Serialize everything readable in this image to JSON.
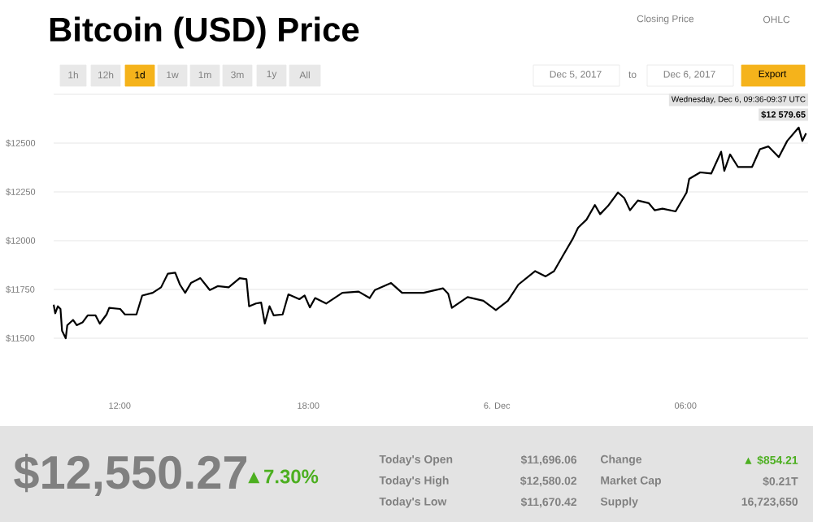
{
  "chart_data": {
    "type": "line",
    "title": "Bitcoin (USD) Price",
    "color": "#000000",
    "grid": "y",
    "x": [
      "2017-12-05T09:54",
      "2017-12-05T09:57",
      "2017-12-05T10:02",
      "2017-12-05T10:07",
      "2017-12-05T10:10",
      "2017-12-05T10:17",
      "2017-12-05T10:20",
      "2017-12-05T10:31",
      "2017-12-05T10:38",
      "2017-12-05T10:49",
      "2017-12-05T10:59",
      "2017-12-05T11:14",
      "2017-12-05T11:22",
      "2017-12-05T11:35",
      "2017-12-05T11:40",
      "2017-12-05T12:01",
      "2017-12-05T12:10",
      "2017-12-05T12:32",
      "2017-12-05T12:43",
      "2017-12-05T13:03",
      "2017-12-05T13:19",
      "2017-12-05T13:32",
      "2017-12-05T13:46",
      "2017-12-05T13:55",
      "2017-12-05T14:05",
      "2017-12-05T14:16",
      "2017-12-05T14:34",
      "2017-12-05T14:52",
      "2017-12-05T15:07",
      "2017-12-05T15:28",
      "2017-12-05T15:49",
      "2017-12-05T16:02",
      "2017-12-05T16:07",
      "2017-12-05T16:20",
      "2017-12-05T16:30",
      "2017-12-05T16:37",
      "2017-12-05T16:46",
      "2017-12-05T16:54",
      "2017-12-05T17:11",
      "2017-12-05T17:22",
      "2017-12-05T17:43",
      "2017-12-05T17:53",
      "2017-12-05T18:03",
      "2017-12-05T18:13",
      "2017-12-05T18:34",
      "2017-12-05T19:05",
      "2017-12-05T19:36",
      "2017-12-05T19:57",
      "2017-12-05T20:07",
      "2017-12-05T20:38",
      "2017-12-05T20:59",
      "2017-12-05T21:40",
      "2017-12-05T22:17",
      "2017-12-05T22:27",
      "2017-12-05T22:34",
      "2017-12-05T23:04",
      "2017-12-05T23:34",
      "2017-12-05T23:58",
      "2017-12-06T00:21",
      "2017-12-06T00:41",
      "2017-12-06T01:13",
      "2017-12-06T01:33",
      "2017-12-06T01:49",
      "2017-12-06T02:07",
      "2017-12-06T02:25",
      "2017-12-06T02:35",
      "2017-12-06T02:51",
      "2017-12-06T03:07",
      "2017-12-06T03:17",
      "2017-12-06T03:32",
      "2017-12-06T03:51",
      "2017-12-06T04:03",
      "2017-12-06T04:14",
      "2017-12-06T04:29",
      "2017-12-06T04:50",
      "2017-12-06T05:01",
      "2017-12-06T05:16",
      "2017-12-06T05:41",
      "2017-12-06T06:02",
      "2017-12-06T06:07",
      "2017-12-06T06:28",
      "2017-12-06T06:49",
      "2017-12-06T07:08",
      "2017-12-06T07:14",
      "2017-12-06T07:25",
      "2017-12-06T07:40",
      "2017-12-06T08:07",
      "2017-12-06T08:22",
      "2017-12-06T08:38",
      "2017-12-06T08:58",
      "2017-12-06T09:14",
      "2017-12-06T09:36",
      "2017-12-06T09:43",
      "2017-12-06T09:50"
    ],
    "values": [
      11672,
      11628,
      11664,
      11650,
      11539,
      11500,
      11567,
      11594,
      11567,
      11581,
      11617,
      11617,
      11575,
      11622,
      11656,
      11650,
      11622,
      11622,
      11719,
      11733,
      11761,
      11831,
      11836,
      11775,
      11733,
      11783,
      11808,
      11747,
      11767,
      11761,
      11808,
      11803,
      11664,
      11678,
      11683,
      11575,
      11664,
      11617,
      11622,
      11725,
      11700,
      11719,
      11658,
      11706,
      11678,
      11733,
      11739,
      11706,
      11747,
      11783,
      11733,
      11733,
      11756,
      11728,
      11656,
      11711,
      11692,
      11644,
      11692,
      11775,
      11844,
      11817,
      11844,
      11928,
      12011,
      12067,
      12108,
      12183,
      12136,
      12178,
      12247,
      12219,
      12156,
      12206,
      12192,
      12156,
      12164,
      12150,
      12247,
      12317,
      12350,
      12344,
      12456,
      12358,
      12442,
      12378,
      12378,
      12469,
      12483,
      12428,
      12511,
      12580,
      12511,
      12550
    ],
    "xlim": [
      "2017-12-05T09:54",
      "2017-12-06T09:54"
    ],
    "ylim": [
      11500,
      12750
    ],
    "xticks": [
      {
        "value": "2017-12-05T12:00",
        "label": "12:00"
      },
      {
        "value": "2017-12-05T18:00",
        "label": "18:00"
      },
      {
        "value": "2017-12-06T00:00",
        "label": "6. Dec"
      },
      {
        "value": "2017-12-06T06:00",
        "label": "06:00"
      }
    ],
    "yticks": [
      {
        "value": 11500,
        "label": "$11500"
      },
      {
        "value": 11750,
        "label": "$11750"
      },
      {
        "value": 12000,
        "label": "$12000"
      },
      {
        "value": 12250,
        "label": "$12250"
      },
      {
        "value": 12500,
        "label": "$12500"
      },
      {
        "value": 12750,
        "label": null
      }
    ],
    "annotations": [
      "Closing Price",
      "OHLC",
      "1h",
      "12h",
      "1d",
      "1w",
      "1m",
      "3m",
      "1y",
      "All",
      "Dec 5, 2017",
      "to",
      "Dec 6, 2017",
      "Export",
      {
        "text": "Wednesday, Dec 6, 09:36-09:37 UTC",
        "x": "2017-12-06T09:36",
        "y": 12580
      },
      {
        "text": "$12 579.65",
        "x": "2017-12-06T09:36",
        "y": 12580
      },
      "$12,550.27",
      "▲7.30%",
      "Today's Open",
      "$11,696.06",
      "Today's High",
      "$12,580.02",
      "Today's Low",
      "$11,670.42",
      "Change",
      "▲ $854.21",
      "Market Cap",
      "$0.21T",
      "Supply",
      "16,723,650"
    ]
  }
}
